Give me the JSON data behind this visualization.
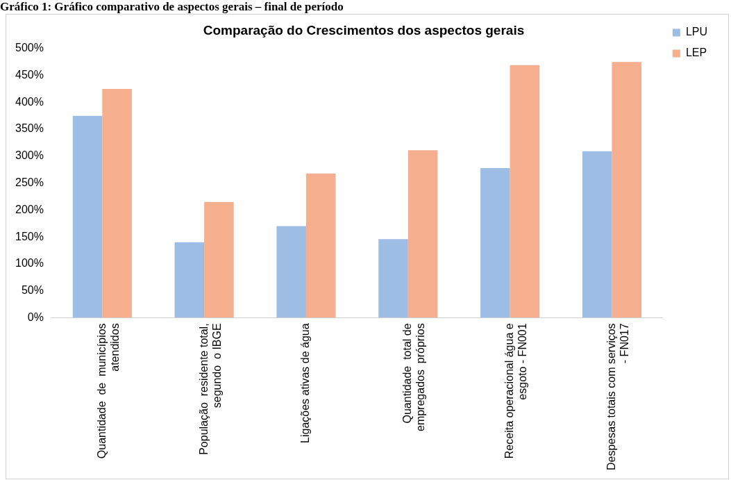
{
  "chart_data": {
    "type": "bar",
    "title": "Comparação do Crescimentos dos aspectos gerais",
    "annotations": [
      "Gráfico 1: Gráfico comparativo de aspectos gerais – final de período"
    ],
    "categories": [
      "Quantidade  de  municípios\natendidos",
      "População  residente total,\nsegundo  o IBGE",
      "Ligações ativas de água",
      "Quantidade  total de\nempregados  próprios",
      "Receita operacional água e\nesgoto - FN001",
      "Despesas totais com serviços\n- FN017"
    ],
    "series": [
      {
        "name": "LPU",
        "color": "#9dbde5",
        "values": [
          375,
          140,
          170,
          146,
          278,
          309
        ]
      },
      {
        "name": "LEP",
        "color": "#f5ae8e",
        "values": [
          425,
          215,
          268,
          311,
          469,
          475
        ]
      }
    ],
    "ylim": [
      0,
      500
    ],
    "yticks": [
      {
        "value": 0,
        "label": "0%"
      },
      {
        "value": 50,
        "label": "50%"
      },
      {
        "value": 100,
        "label": "100%"
      },
      {
        "value": 150,
        "label": "150%"
      },
      {
        "value": 200,
        "label": "200%"
      },
      {
        "value": 250,
        "label": "250%"
      },
      {
        "value": 300,
        "label": "300%"
      },
      {
        "value": 350,
        "label": "350%"
      },
      {
        "value": 400,
        "label": "400%"
      },
      {
        "value": 450,
        "label": "450%"
      },
      {
        "value": 500,
        "label": "500%"
      }
    ],
    "grid": false,
    "legend": "right"
  }
}
